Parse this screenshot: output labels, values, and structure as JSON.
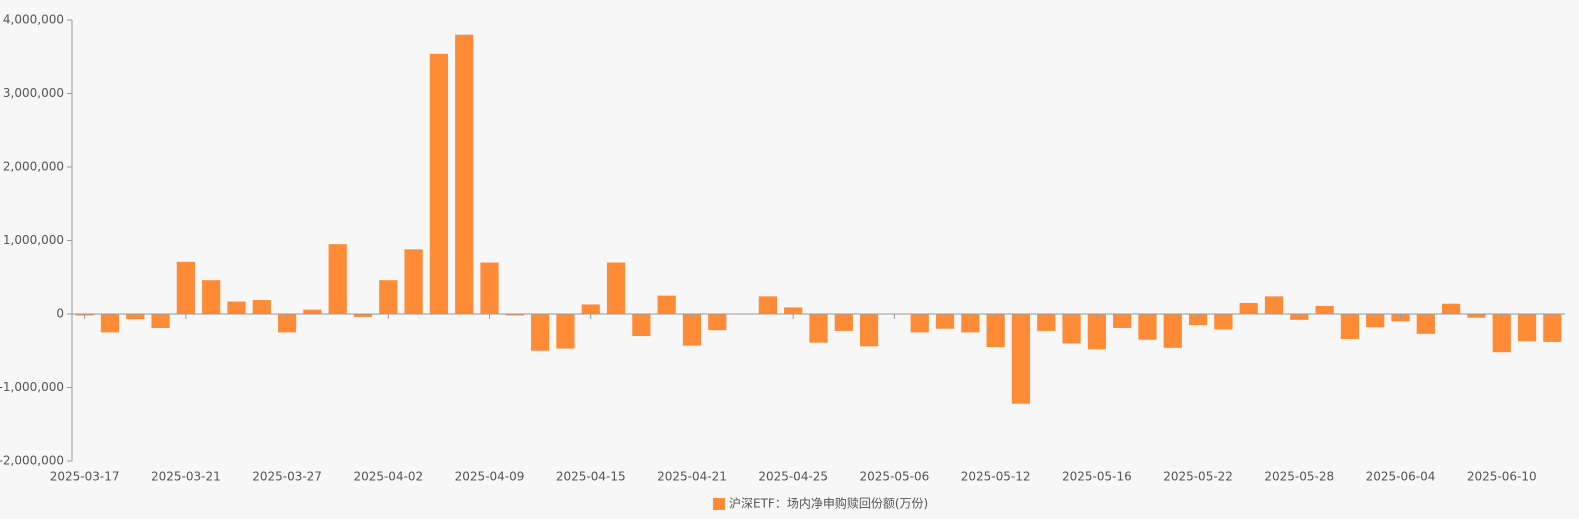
{
  "chart_data": {
    "type": "bar",
    "categories": [
      "2025-03-17",
      null,
      null,
      null,
      "2025-03-21",
      null,
      null,
      null,
      "2025-03-27",
      null,
      null,
      null,
      "2025-04-02",
      null,
      null,
      null,
      "2025-04-09",
      null,
      null,
      null,
      "2025-04-15",
      null,
      null,
      null,
      "2025-04-21",
      null,
      null,
      null,
      "2025-04-25",
      null,
      null,
      null,
      "2025-05-06",
      null,
      null,
      null,
      "2025-05-12",
      null,
      null,
      null,
      "2025-05-16",
      null,
      null,
      null,
      "2025-05-22",
      null,
      null,
      null,
      "2025-05-28",
      null,
      null,
      null,
      "2025-06-04",
      null,
      null,
      null,
      "2025-06-10",
      null,
      null
    ],
    "series": [
      {
        "name": "沪深ETF：场内净申购赎回份额(万份)",
        "color": "#ff8b37",
        "values": [
          -20000,
          -250000,
          -70000,
          -190000,
          710000,
          460000,
          170000,
          190000,
          -250000,
          60000,
          950000,
          -40000,
          460000,
          880000,
          3540000,
          3800000,
          700000,
          -20000,
          -500000,
          -470000,
          130000,
          700000,
          -300000,
          250000,
          -430000,
          -220000,
          0,
          240000,
          90000,
          -390000,
          -230000,
          -440000,
          0,
          -250000,
          -200000,
          -250000,
          -450000,
          -1220000,
          -230000,
          -400000,
          -480000,
          -190000,
          -350000,
          -460000,
          -150000,
          -210000,
          150000,
          240000,
          -80000,
          110000,
          -340000,
          -180000,
          -100000,
          -270000,
          140000,
          -50000,
          -520000,
          -370000,
          -380000
        ]
      }
    ],
    "ylim": [
      -2000000,
      4000000
    ],
    "yticks": [
      {
        "value": -2000000,
        "label": "-2,000,000"
      },
      {
        "value": -1000000,
        "label": "-1,000,000"
      },
      0,
      {
        "value": 1000000,
        "label": "1,000,000"
      },
      {
        "value": 2000000,
        "label": "2,000,000"
      },
      {
        "value": 3000000,
        "label": "3,000,000"
      },
      {
        "value": 4000000,
        "label": "4,000,000"
      }
    ],
    "grid": false,
    "legend": "bottom"
  }
}
